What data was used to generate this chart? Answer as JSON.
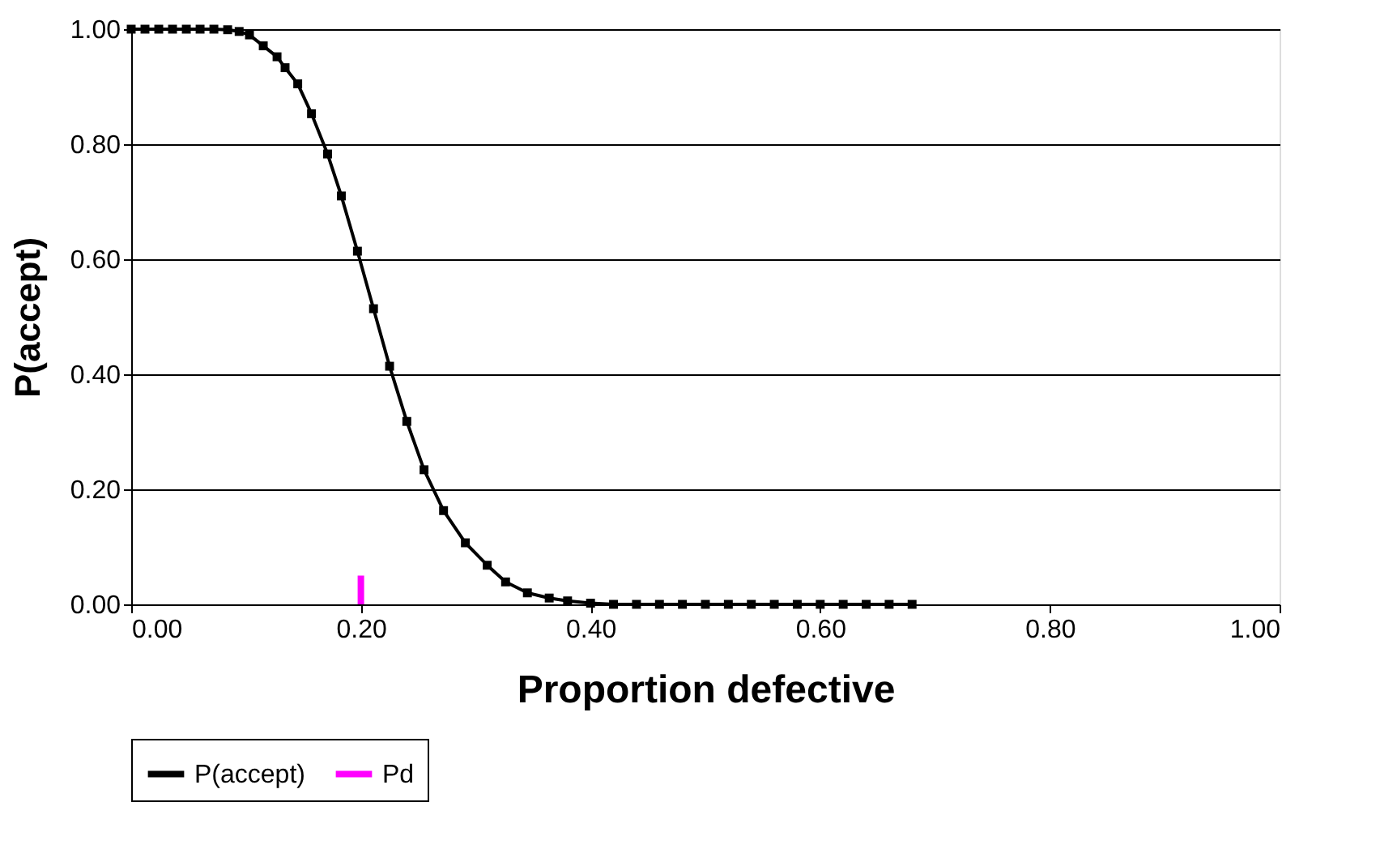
{
  "chart_data": {
    "type": "line",
    "xlabel": "Proportion defective",
    "ylabel": "P(accept)",
    "xlim": [
      0,
      1
    ],
    "ylim": [
      0,
      1
    ],
    "xticks": [
      {
        "value": 0,
        "label": "0.00"
      },
      {
        "value": 0.2,
        "label": "0.20"
      },
      {
        "value": 0.4,
        "label": "0.40"
      },
      {
        "value": 0.6,
        "label": "0.60"
      },
      {
        "value": 0.8,
        "label": "0.80"
      },
      {
        "value": 1,
        "label": "1.00"
      }
    ],
    "yticks": [
      {
        "value": 0,
        "label": "0.00"
      },
      {
        "value": 0.2,
        "label": "0.20"
      },
      {
        "value": 0.4,
        "label": "0.40"
      },
      {
        "value": 0.6,
        "label": "0.60"
      },
      {
        "value": 0.8,
        "label": "0.80"
      },
      {
        "value": 1,
        "label": "1.00"
      }
    ],
    "grid": "y",
    "legend": "bottom",
    "series": [
      {
        "name": "P(accept)",
        "color": "#000000",
        "marker": "square",
        "x": [
          0,
          0.012,
          0.024,
          0.036,
          0.048,
          0.06,
          0.072,
          0.084,
          0.094,
          0.103,
          0.115,
          0.127,
          0.134,
          0.145,
          0.157,
          0.171,
          0.183,
          0.197,
          0.211,
          0.225,
          0.24,
          0.255,
          0.272,
          0.291,
          0.31,
          0.326,
          0.345,
          0.364,
          0.38,
          0.4,
          0.42,
          0.44,
          0.46,
          0.48,
          0.5,
          0.52,
          0.54,
          0.56,
          0.58,
          0.6,
          0.62,
          0.64,
          0.66,
          0.68
        ],
        "values": [
          1,
          1,
          1,
          1,
          1,
          1,
          1,
          0.999,
          0.996,
          0.99,
          0.971,
          0.952,
          0.933,
          0.905,
          0.853,
          0.783,
          0.71,
          0.614,
          0.514,
          0.414,
          0.318,
          0.234,
          0.163,
          0.107,
          0.068,
          0.039,
          0.02,
          0.011,
          0.006,
          0.002,
          0,
          0,
          0,
          0,
          0,
          0,
          0,
          0,
          0,
          0,
          0,
          0,
          0,
          0
        ]
      },
      {
        "name": "Pd",
        "color": "#ff00ff",
        "marker": "none",
        "x": [
          0.2,
          0.2
        ],
        "values": [
          0,
          0.05
        ]
      }
    ]
  }
}
